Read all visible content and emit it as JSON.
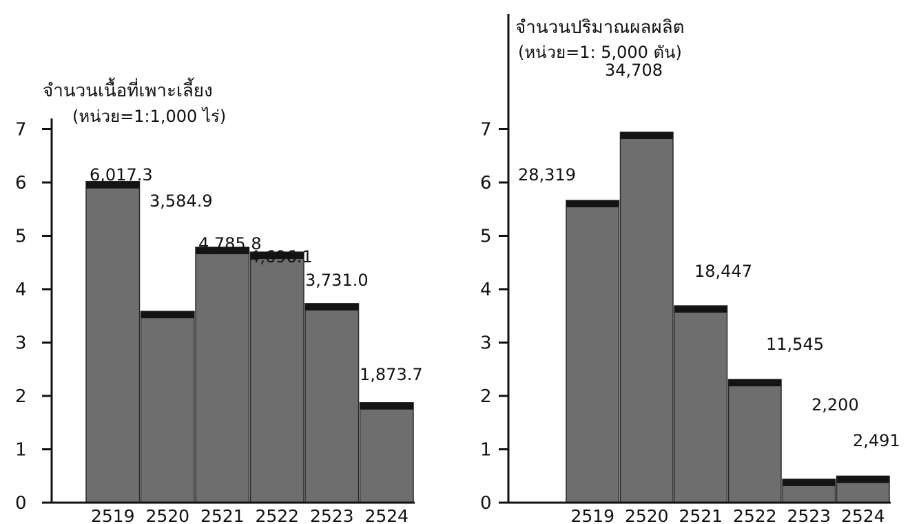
{
  "colors": {
    "bar_fill": "#6e6e6e",
    "bar_top": "#141414",
    "axis": "#111111"
  },
  "chart_data": [
    {
      "type": "bar",
      "title": "จำนวนเนื้อที่เพาะเลี้ยง",
      "subtitle": "(หน่วย=1:1,000 ไร่)",
      "categories": [
        "2519",
        "2520",
        "2521",
        "2522",
        "2523",
        "2524"
      ],
      "values": [
        6017.3,
        3584.9,
        4785.8,
        4696.1,
        3731.0,
        1873.7
      ],
      "data_labels": [
        "6,017.3",
        "3,584.9",
        "4,785.8",
        "4,696.1",
        "3,731.0",
        "1,873.7"
      ],
      "scale_divisor": 1000,
      "yticks": [
        "0",
        "1",
        "2",
        "3",
        "4",
        "5",
        "6",
        "7"
      ],
      "ylim": [
        0,
        7
      ],
      "grid": false
    },
    {
      "type": "bar",
      "title": "จำนวนปริมาณผลผลิต",
      "subtitle": "(หน่วย=1: 5,000 ตัน)",
      "categories": [
        "2519",
        "2520",
        "2521",
        "2522",
        "2523",
        "2524"
      ],
      "values": [
        28319,
        34708,
        18447,
        11545,
        2200,
        2491
      ],
      "data_labels": [
        "28,319",
        "34,708",
        "18,447",
        "11,545",
        "2,200",
        "2,491"
      ],
      "scale_divisor": 5000,
      "yticks": [
        "0",
        "1",
        "2",
        "3",
        "4",
        "5",
        "6",
        "7"
      ],
      "ylim": [
        0,
        7
      ],
      "grid": false
    }
  ]
}
